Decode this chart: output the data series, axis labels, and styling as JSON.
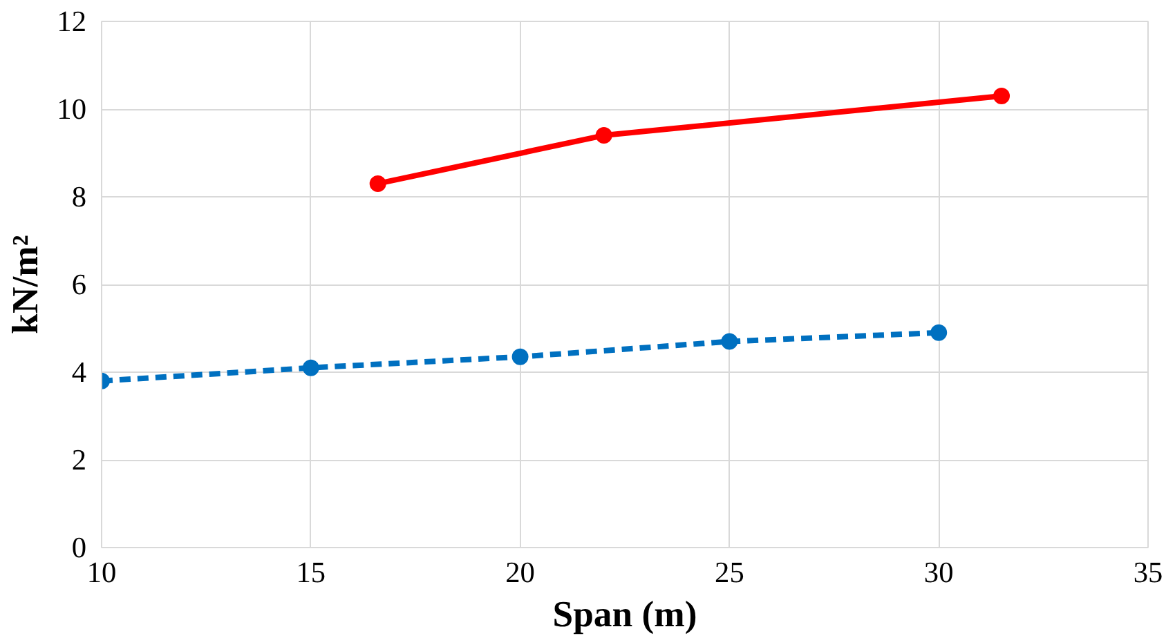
{
  "chart_data": {
    "type": "line",
    "xlabel": "Span (m)",
    "ylabel": "kN/m²",
    "xlim": [
      10,
      35
    ],
    "xticks": [
      10,
      15,
      20,
      25,
      30,
      35
    ],
    "ylim": [
      0,
      12
    ],
    "yticks": [
      0,
      2,
      4,
      6,
      8,
      10,
      12
    ],
    "grid": true,
    "marker": "circle",
    "series": [
      {
        "color": "#ff0000",
        "line_style": "solid",
        "x": [
          16.6,
          22.0,
          31.5
        ],
        "values": [
          8.3,
          9.4,
          10.3
        ]
      },
      {
        "color": "#0070c0",
        "line_style": "dashed",
        "x": [
          10,
          15,
          20,
          25,
          30
        ],
        "values": [
          3.8,
          4.1,
          4.35,
          4.7,
          4.9
        ]
      }
    ]
  }
}
